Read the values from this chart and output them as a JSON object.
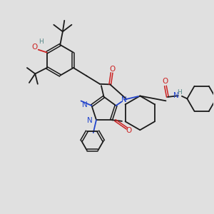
{
  "bg_color": "#e0e0e0",
  "bond_color": "#1a1a1a",
  "n_color": "#2244cc",
  "o_color": "#cc2222",
  "h_color": "#558888",
  "figsize": [
    3.0,
    3.0
  ],
  "dpi": 100,
  "xlim": [
    0,
    10
  ],
  "ylim": [
    0,
    10
  ]
}
